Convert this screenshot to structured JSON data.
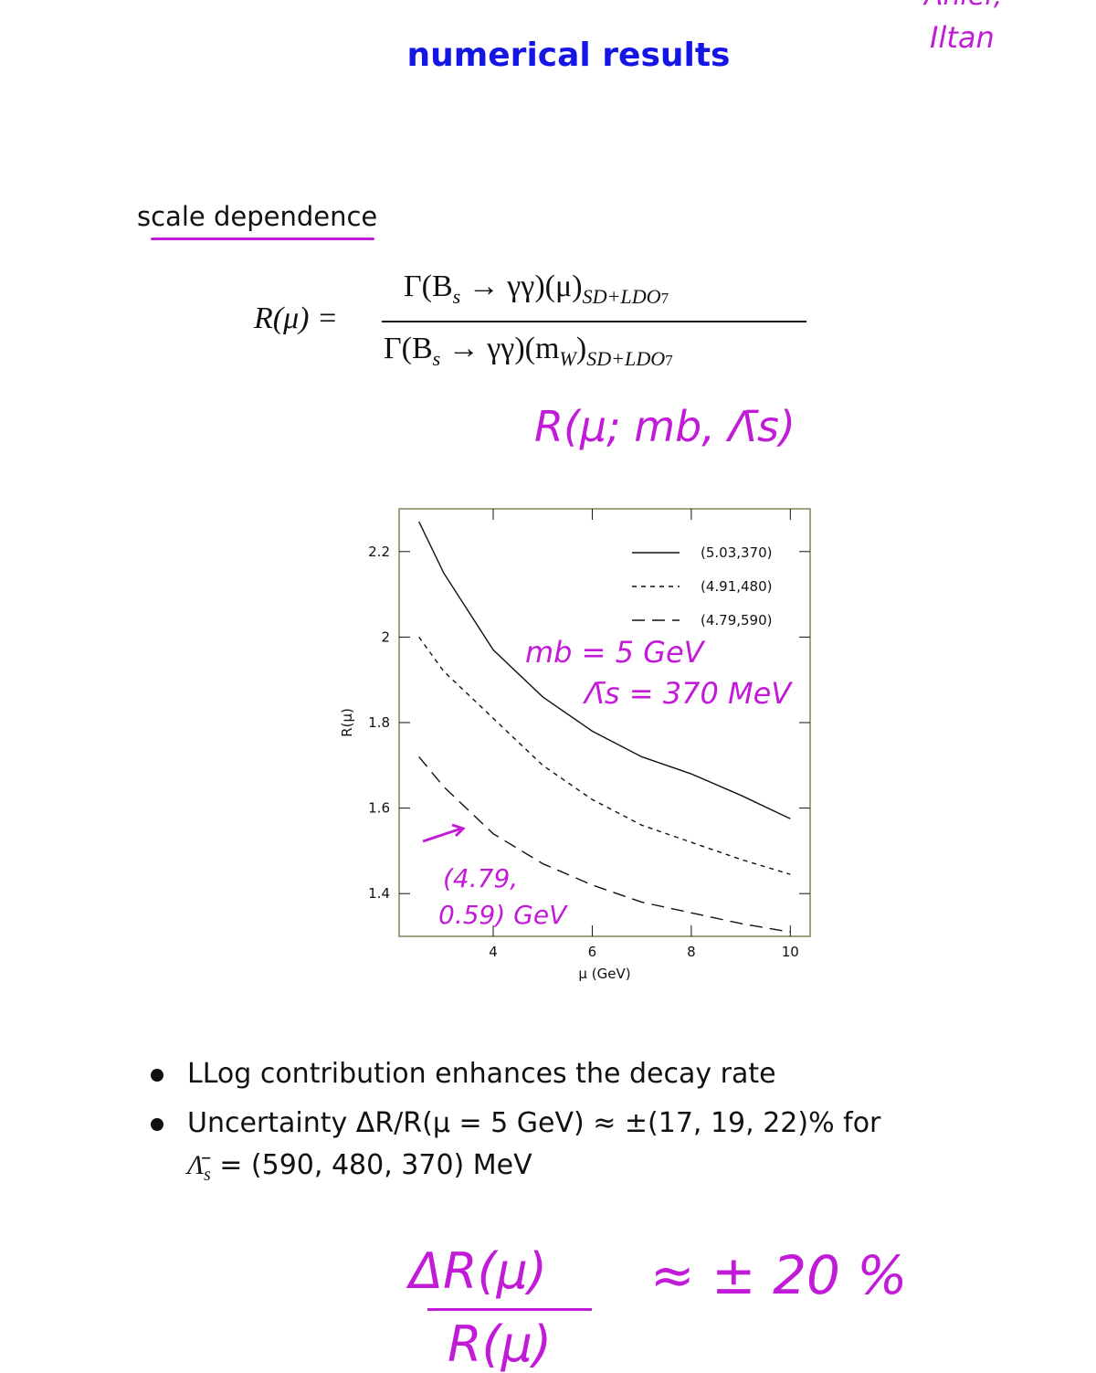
{
  "title": "numerical results",
  "corner_note": [
    "Ahler,",
    "Iltan"
  ],
  "section": "scale dependence",
  "equation": {
    "lhs": "R(μ) =",
    "numerator": [
      "Γ(B",
      "s",
      " → γγ)(μ)",
      "SD+LD",
      "O",
      "7"
    ],
    "denominator": [
      "Γ(B",
      "s",
      " → γγ)(m",
      "W",
      ")",
      "SD+LD",
      "O",
      "7"
    ]
  },
  "note_r": "R(μ; mb, Λ̄s)",
  "chart_data": {
    "type": "line",
    "x": [
      2.5,
      3,
      4,
      5,
      6,
      7,
      8,
      9,
      10
    ],
    "series": [
      {
        "name": "(5.03,370)",
        "color": "#111111",
        "dash": "solid",
        "values": [
          2.27,
          2.15,
          1.97,
          1.86,
          1.78,
          1.72,
          1.68,
          1.63,
          1.575
        ]
      },
      {
        "name": "(4.91,480)",
        "color": "#111111",
        "dash": "dashed",
        "values": [
          2.0,
          1.92,
          1.81,
          1.7,
          1.62,
          1.56,
          1.52,
          1.48,
          1.445
        ]
      },
      {
        "name": "(4.79,590)",
        "color": "#111111",
        "dash": "long-dashed",
        "values": [
          1.72,
          1.65,
          1.54,
          1.47,
          1.42,
          1.38,
          1.355,
          1.33,
          1.31
        ]
      }
    ],
    "xlim": [
      2.1,
      10.4
    ],
    "ylim": [
      1.3,
      2.3
    ],
    "xticks": [
      4,
      6,
      8,
      10
    ],
    "yticks": [
      1.4,
      1.6,
      1.8,
      2,
      2.2
    ],
    "xlabel": "μ (GeV)",
    "ylabel": "R(μ)",
    "legend": "top-right"
  },
  "chart_notes": [
    "mb = 5 GeV",
    "Λ̄s = 370 MeV",
    "(4.79,",
    "0.59) GeV"
  ],
  "bullets": [
    [
      "LLog contribution enhances the decay rate"
    ],
    [
      "Uncertainty ΔR/R(μ = 5 GeV) ≈ ±(17, 19, 22)% for",
      "Λ̄",
      "s",
      " = (590, 480, 370) MeV"
    ]
  ],
  "final_note": {
    "numerator": "ΔR(μ)",
    "denominator": "R(μ)",
    "rhs": "≈ ± 20 %"
  }
}
